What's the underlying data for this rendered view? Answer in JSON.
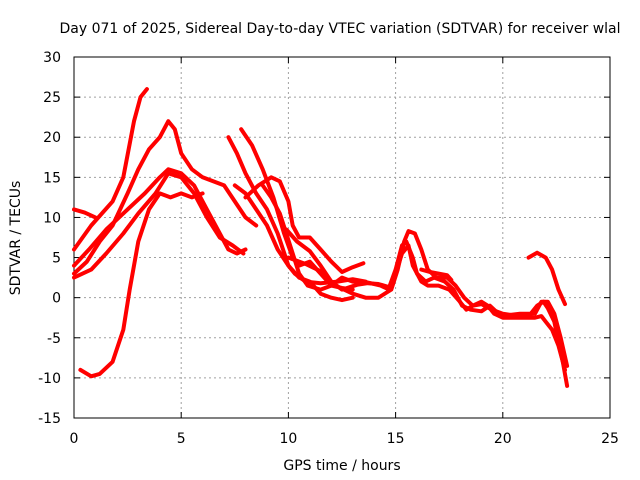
{
  "chart_data": {
    "type": "line",
    "title": "Day 071 of 2025, Sidereal Day-to-day VTEC variation (SDTVAR) for receiver wlal",
    "xlabel": "GPS time / hours",
    "ylabel": "SDTVAR / TECUs",
    "xlim": [
      0,
      25
    ],
    "ylim": [
      -15,
      30
    ],
    "xticks": [
      0,
      5,
      10,
      15,
      20,
      25
    ],
    "yticks": [
      -15,
      -10,
      -5,
      0,
      5,
      10,
      15,
      20,
      25,
      30
    ],
    "grid": true,
    "series_color": "#ff0000",
    "series": [
      {
        "name": "track-1",
        "points": [
          [
            0,
            11
          ],
          [
            0.5,
            10.6
          ],
          [
            1,
            10
          ]
        ]
      },
      {
        "name": "track-2",
        "points": [
          [
            0,
            6
          ],
          [
            0.8,
            9
          ],
          [
            1.8,
            12
          ],
          [
            2.3,
            15
          ],
          [
            2.8,
            22
          ],
          [
            3.1,
            25
          ],
          [
            3.4,
            26
          ]
        ]
      },
      {
        "name": "track-3",
        "points": [
          [
            0,
            3
          ],
          [
            0.6,
            4.5
          ],
          [
            1.2,
            7
          ],
          [
            1.8,
            9
          ],
          [
            2.5,
            13
          ],
          [
            3,
            16
          ],
          [
            3.5,
            18.5
          ],
          [
            4,
            20
          ],
          [
            4.4,
            22
          ],
          [
            4.7,
            21
          ],
          [
            5,
            18
          ],
          [
            5.5,
            16
          ],
          [
            6,
            15
          ],
          [
            7,
            14
          ],
          [
            7.5,
            12
          ],
          [
            8,
            10
          ],
          [
            8.5,
            9
          ]
        ]
      },
      {
        "name": "track-4",
        "points": [
          [
            0,
            4
          ],
          [
            0.7,
            6
          ],
          [
            1.5,
            8.5
          ],
          [
            2.5,
            11
          ],
          [
            3.3,
            13
          ],
          [
            4,
            15
          ],
          [
            4.4,
            16
          ],
          [
            5,
            15.5
          ],
          [
            5.6,
            14
          ],
          [
            6.2,
            11
          ],
          [
            6.8,
            8
          ],
          [
            7.2,
            6
          ],
          [
            7.6,
            5.5
          ],
          [
            8,
            6
          ]
        ]
      },
      {
        "name": "track-5",
        "points": [
          [
            0,
            2.5
          ],
          [
            0.8,
            3.5
          ],
          [
            1.5,
            5.5
          ],
          [
            2.3,
            8
          ],
          [
            3,
            10.5
          ],
          [
            3.8,
            13
          ],
          [
            4.4,
            15.5
          ],
          [
            5,
            15
          ],
          [
            5.6,
            13
          ],
          [
            6.2,
            10
          ],
          [
            6.8,
            7.5
          ],
          [
            7.4,
            6.5
          ],
          [
            7.9,
            5.5
          ]
        ]
      },
      {
        "name": "track-6",
        "points": [
          [
            0.3,
            -9
          ],
          [
            0.8,
            -9.8
          ],
          [
            1.2,
            -9.5
          ],
          [
            1.8,
            -8
          ],
          [
            2.3,
            -4
          ],
          [
            2.6,
            1
          ],
          [
            3,
            7
          ],
          [
            3.5,
            11
          ],
          [
            4,
            13
          ],
          [
            4.5,
            12.5
          ],
          [
            5,
            13
          ],
          [
            5.5,
            12.5
          ],
          [
            6,
            13
          ]
        ]
      },
      {
        "name": "track-7",
        "points": [
          [
            7.2,
            20
          ],
          [
            7.6,
            18
          ],
          [
            8,
            15.5
          ],
          [
            8.5,
            13
          ],
          [
            9,
            11
          ],
          [
            9.5,
            8
          ],
          [
            10,
            4
          ],
          [
            10.5,
            2.5
          ],
          [
            11,
            2
          ],
          [
            11.5,
            0.5
          ],
          [
            12,
            0
          ],
          [
            12.5,
            -0.3
          ],
          [
            13,
            0
          ]
        ]
      },
      {
        "name": "track-8",
        "points": [
          [
            7.8,
            21
          ],
          [
            8.3,
            19
          ],
          [
            8.8,
            16
          ],
          [
            9.3,
            12.5
          ],
          [
            9.8,
            8
          ],
          [
            10.2,
            5
          ],
          [
            10.5,
            4
          ],
          [
            11,
            4.5
          ],
          [
            11.5,
            3
          ],
          [
            12,
            1.5
          ],
          [
            12.5,
            1.2
          ],
          [
            13,
            1
          ]
        ]
      },
      {
        "name": "track-9",
        "points": [
          [
            7.5,
            14
          ],
          [
            8,
            13
          ],
          [
            8.5,
            11
          ],
          [
            9,
            9
          ],
          [
            9.5,
            6
          ],
          [
            10,
            4
          ],
          [
            10.3,
            3
          ],
          [
            10.8,
            2
          ],
          [
            11.5,
            1.8
          ],
          [
            12.3,
            2
          ],
          [
            13,
            2.3
          ],
          [
            13.6,
            2
          ]
        ]
      },
      {
        "name": "track-10",
        "points": [
          [
            8,
            12.5
          ],
          [
            8.6,
            14
          ],
          [
            9.2,
            15
          ],
          [
            9.6,
            14.5
          ],
          [
            10,
            12
          ],
          [
            10.2,
            9
          ],
          [
            10.5,
            7.5
          ],
          [
            11,
            7.5
          ],
          [
            11.5,
            6
          ],
          [
            12,
            4.5
          ],
          [
            12.5,
            3.2
          ],
          [
            13,
            3.8
          ],
          [
            13.5,
            4.3
          ]
        ]
      },
      {
        "name": "track-11",
        "points": [
          [
            8.8,
            14
          ],
          [
            9.2,
            12.5
          ],
          [
            9.6,
            10.5
          ],
          [
            9.9,
            8
          ],
          [
            10.2,
            5.5
          ],
          [
            10.5,
            3
          ],
          [
            10.9,
            1.5
          ],
          [
            11.5,
            1
          ],
          [
            12,
            1.5
          ],
          [
            12.5,
            2.5
          ],
          [
            13,
            2
          ],
          [
            13.5,
            2
          ],
          [
            14,
            1.7
          ],
          [
            14.3,
            1.5
          ],
          [
            14.7,
            1
          ],
          [
            15,
            3
          ],
          [
            15.3,
            5.5
          ],
          [
            15.6,
            6.5
          ],
          [
            15.8,
            4
          ],
          [
            16.2,
            2
          ],
          [
            16.5,
            1.5
          ],
          [
            17,
            1.5
          ],
          [
            17.5,
            1
          ],
          [
            18,
            -0.5
          ],
          [
            18.3,
            -1.5
          ],
          [
            18.6,
            -1
          ],
          [
            19,
            -0.5
          ],
          [
            19.3,
            -1
          ],
          [
            19.6,
            -2
          ],
          [
            20,
            -2.5
          ],
          [
            20.5,
            -2.5
          ],
          [
            21,
            -2.5
          ],
          [
            21.5,
            -2.5
          ],
          [
            21.8,
            -2.3
          ],
          [
            22,
            -3
          ],
          [
            22.3,
            -4
          ],
          [
            22.6,
            -6
          ],
          [
            22.9,
            -9
          ]
        ]
      },
      {
        "name": "track-12",
        "points": [
          [
            10,
            5
          ],
          [
            10.8,
            4.2
          ],
          [
            11.5,
            3.3
          ],
          [
            12.2,
            1.5
          ],
          [
            13,
            0.5
          ],
          [
            13.6,
            0
          ],
          [
            14.2,
            0
          ],
          [
            14.8,
            1
          ],
          [
            15.1,
            3.5
          ],
          [
            15.4,
            7
          ],
          [
            15.6,
            8.3
          ],
          [
            15.9,
            8
          ],
          [
            16.2,
            6
          ],
          [
            16.5,
            3.5
          ],
          [
            16.9,
            2.5
          ],
          [
            17.4,
            2.5
          ],
          [
            17.8,
            1.5
          ],
          [
            18.2,
            0
          ],
          [
            18.6,
            -1
          ],
          [
            19,
            -0.8
          ],
          [
            19.5,
            -1.5
          ],
          [
            20,
            -2
          ],
          [
            20.5,
            -2.2
          ],
          [
            21.5,
            -2
          ],
          [
            21.8,
            -0.5
          ],
          [
            22.1,
            -0.5
          ],
          [
            22.4,
            -2
          ],
          [
            22.7,
            -5
          ],
          [
            23,
            -8.5
          ]
        ]
      },
      {
        "name": "track-13",
        "points": [
          [
            9.9,
            8.5
          ],
          [
            10.4,
            7
          ],
          [
            11,
            5.8
          ],
          [
            11.5,
            4
          ],
          [
            12,
            2
          ],
          [
            12.5,
            1
          ],
          [
            13.2,
            1.6
          ],
          [
            13.7,
            1.8
          ],
          [
            14.2,
            1.7
          ],
          [
            14.7,
            1.3
          ],
          [
            15,
            3.5
          ],
          [
            15.3,
            6.5
          ],
          [
            15.5,
            7
          ],
          [
            15.8,
            5
          ],
          [
            16,
            3
          ],
          [
            16.4,
            2
          ],
          [
            16.8,
            2.5
          ],
          [
            17.3,
            2
          ],
          [
            17.7,
            1
          ],
          [
            18.1,
            -1
          ],
          [
            18.5,
            -1.5
          ],
          [
            19,
            -1.7
          ],
          [
            19.4,
            -1
          ],
          [
            19.8,
            -2
          ],
          [
            20.2,
            -2.2
          ],
          [
            20.8,
            -2
          ],
          [
            21.3,
            -2
          ],
          [
            21.6,
            -1
          ],
          [
            21.9,
            -0.5
          ],
          [
            22.1,
            -1.3
          ],
          [
            22.4,
            -3
          ],
          [
            22.6,
            -5.5
          ],
          [
            22.8,
            -8
          ],
          [
            23,
            -11
          ]
        ]
      },
      {
        "name": "track-14",
        "points": [
          [
            16.2,
            3.5
          ],
          [
            16.6,
            3.2
          ],
          [
            17,
            3
          ],
          [
            17.4,
            2.8
          ],
          [
            17.6,
            2.2
          ]
        ]
      },
      {
        "name": "track-15",
        "points": [
          [
            21.2,
            5
          ],
          [
            21.6,
            5.6
          ],
          [
            22,
            5
          ],
          [
            22.3,
            3.5
          ],
          [
            22.6,
            1
          ],
          [
            22.9,
            -0.8
          ]
        ]
      }
    ]
  }
}
